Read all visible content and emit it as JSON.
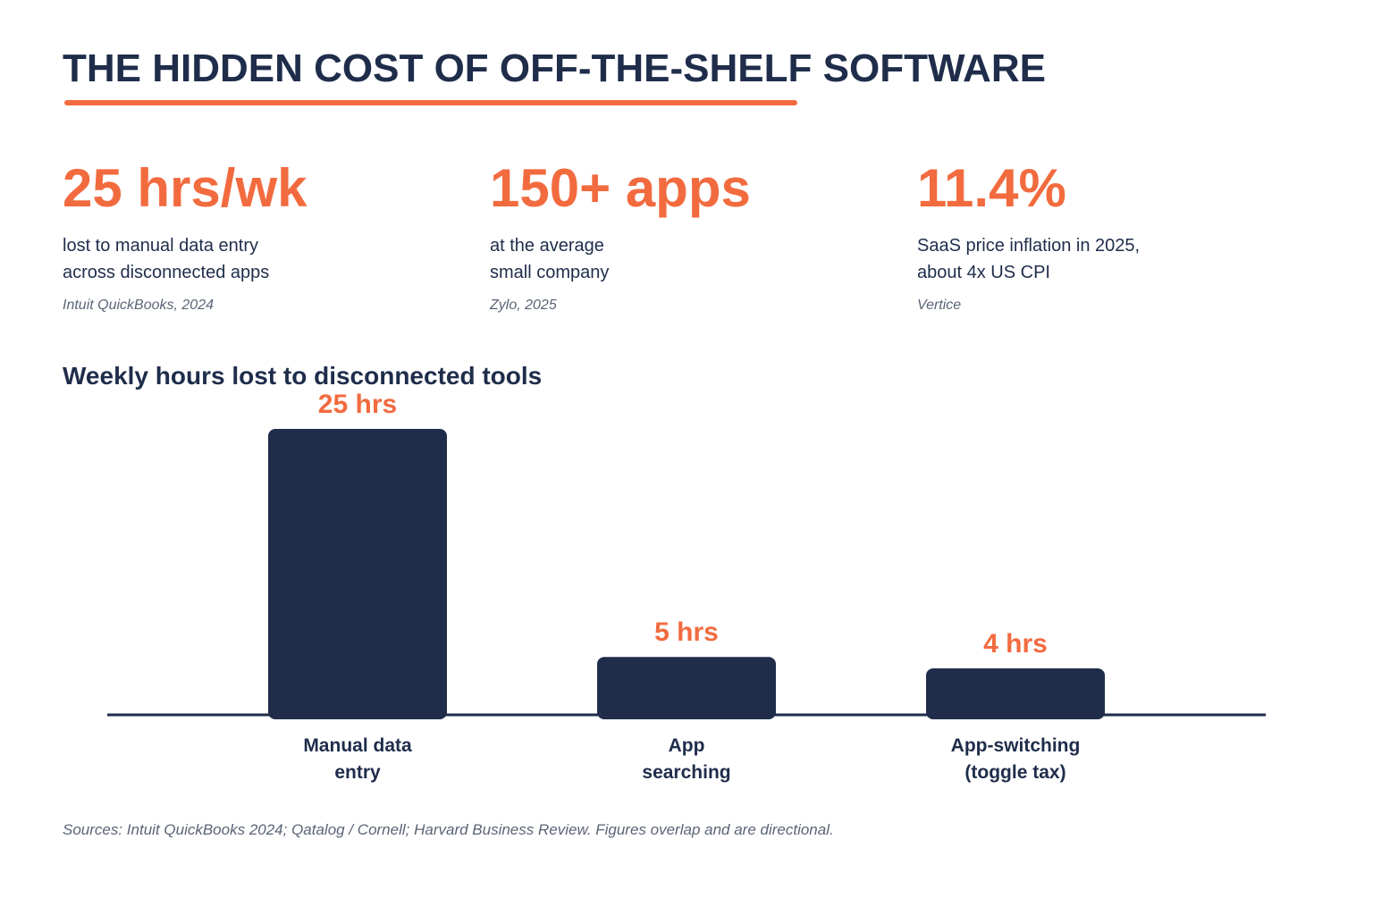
{
  "header": {
    "title": "THE HIDDEN COST OF OFF-THE-SHELF SOFTWARE"
  },
  "stats": [
    {
      "value": "25 hrs/wk",
      "desc_lines": [
        "lost to manual data entry",
        "across disconnected apps"
      ],
      "source": "Intuit QuickBooks, 2024"
    },
    {
      "value": "150+ apps",
      "desc_lines": [
        "at the average",
        "small company"
      ],
      "source": "Zylo, 2025"
    },
    {
      "value": "11.4%",
      "desc_lines": [
        "SaaS price inflation in 2025,",
        "about 4x US CPI"
      ],
      "source": "Vertice"
    }
  ],
  "colors": {
    "accent": "#f26b3f",
    "navy": "#1f2d4b",
    "muted": "#5b6476"
  },
  "chart_data": {
    "type": "bar",
    "title": "Weekly hours lost to disconnected tools",
    "categories": [
      [
        "Manual data",
        "entry"
      ],
      [
        "App",
        "searching"
      ],
      [
        "App-switching",
        "(toggle tax)"
      ]
    ],
    "values": [
      25,
      5,
      4
    ],
    "data_labels": [
      "25 hrs",
      "5 hrs",
      "4 hrs"
    ],
    "unit": "hrs",
    "xlabel": "",
    "ylabel": "",
    "ylim": [
      0,
      25
    ],
    "grid": false,
    "legend": "none"
  },
  "footnote": "Sources: Intuit QuickBooks 2024; Qatalog / Cornell; Harvard Business Review. Figures overlap and are directional."
}
